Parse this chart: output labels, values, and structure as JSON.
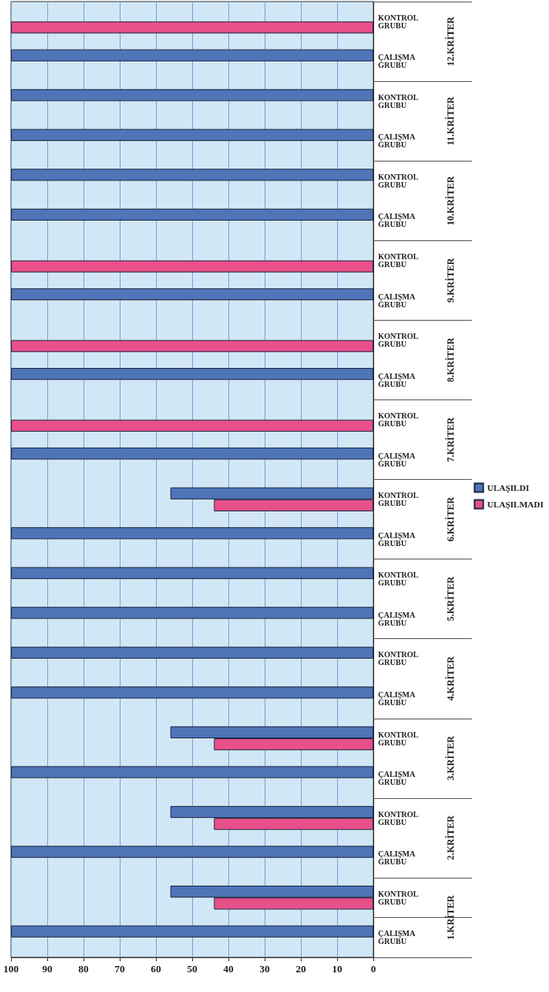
{
  "chart_data": {
    "type": "bar",
    "orientation": "horizontal",
    "categories": [
      "KONTROL GRUBU",
      "ÇALIŞMA GRUBU",
      "KONTROL GRUBU",
      "ÇALIŞMA GRUBU",
      "KONTROL GRUBU",
      "ÇALIŞMA GRUBU",
      "KONTROL GRUBU",
      "ÇALIŞMA GRUBU",
      "KONTROL GRUBU",
      "ÇALIŞMA GRUBU",
      "KONTROL GRUBU",
      "ÇALIŞMA GRUBU",
      "KONTROL GRUBU",
      "ÇALIŞMA GRUBU",
      "KONTROL GRUBU",
      "ÇALIŞMA GRUBU",
      "KONTROL GRUBU",
      "ÇALIŞMA GRUBU",
      "KONTROL GRUBU",
      "ÇALIŞMA GRUBU",
      "KONTROL GRUBU",
      "ÇALIŞMA GRUBU",
      "KONTROL GRUBU",
      "ÇALIŞMA GRUBU"
    ],
    "series": [
      {
        "name": "ULAŞILDI",
        "color": "#4f74b8",
        "values": [
          0,
          100,
          100,
          100,
          100,
          100,
          0,
          100,
          0,
          100,
          0,
          100,
          56,
          100,
          100,
          100,
          100,
          100,
          56,
          100,
          56,
          100,
          56,
          100
        ]
      },
      {
        "name": "ULAŞILMADI",
        "color": "#e8508a",
        "values": [
          100,
          0,
          0,
          0,
          0,
          0,
          100,
          0,
          100,
          0,
          100,
          0,
          44,
          0,
          0,
          0,
          0,
          0,
          44,
          0,
          44,
          0,
          44,
          0
        ]
      }
    ],
    "annotations": [
      "12.KRİTER",
      "11.KRİTER",
      "10.KRİTER",
      "9.KRİTER",
      "8.KRİTER",
      "7.KRİTER",
      "6.KRİTER",
      "5.KRİTER",
      "4.KRİTER",
      "3.KRİTER",
      "2.KRİTER",
      "1.KRİTER"
    ],
    "xlim": [
      100,
      0
    ],
    "xticks": [
      100,
      90,
      80,
      70,
      60,
      50,
      40,
      30,
      20,
      10,
      0
    ],
    "grid": "x",
    "legend": "right"
  }
}
